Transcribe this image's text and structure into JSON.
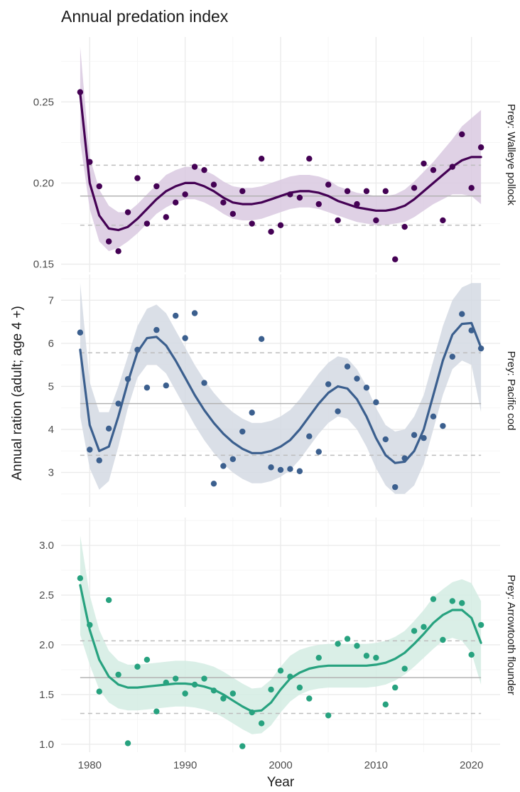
{
  "chart_data": {
    "type": "scatter",
    "title": "Annual predation index",
    "xlabel": "Year",
    "ylabel": "Annual ration (adult; age 4 +)",
    "grid": true,
    "x_ticks": [
      1980,
      1990,
      2000,
      2010,
      2020
    ],
    "xlim": [
      1977,
      2023
    ],
    "years": [
      1979,
      1980,
      1981,
      1982,
      1983,
      1984,
      1985,
      1986,
      1987,
      1988,
      1989,
      1990,
      1991,
      1992,
      1993,
      1994,
      1995,
      1996,
      1997,
      1998,
      1999,
      2000,
      2001,
      2002,
      2003,
      2004,
      2005,
      2006,
      2007,
      2008,
      2009,
      2010,
      2011,
      2012,
      2013,
      2014,
      2015,
      2016,
      2017,
      2018,
      2019,
      2020,
      2021
    ],
    "panels": [
      {
        "strip": "Prey: Walleye pollock",
        "color": "#440154",
        "ylim": [
          0.145,
          0.29
        ],
        "y_ticks": [
          0.15,
          0.2,
          0.25
        ],
        "y_tick_labels": [
          "0.15",
          "0.20",
          "0.25"
        ],
        "mean": 0.192,
        "lower": 0.174,
        "upper": 0.211,
        "points": [
          0.256,
          0.213,
          0.198,
          0.164,
          0.158,
          0.182,
          0.203,
          0.175,
          0.198,
          0.179,
          0.188,
          0.193,
          0.21,
          0.208,
          0.199,
          0.188,
          0.181,
          0.195,
          0.175,
          0.215,
          0.17,
          0.174,
          0.193,
          0.191,
          0.215,
          0.187,
          0.199,
          0.177,
          0.195,
          0.187,
          0.195,
          0.177,
          0.195,
          0.153,
          0.173,
          0.197,
          0.212,
          0.208,
          0.177,
          0.21,
          0.23,
          0.197,
          0.222
        ],
        "fit": [
          0.255,
          0.2,
          0.18,
          0.172,
          0.171,
          0.173,
          0.178,
          0.184,
          0.19,
          0.195,
          0.198,
          0.2,
          0.2,
          0.198,
          0.195,
          0.191,
          0.188,
          0.187,
          0.187,
          0.188,
          0.19,
          0.192,
          0.194,
          0.195,
          0.195,
          0.194,
          0.192,
          0.189,
          0.187,
          0.185,
          0.184,
          0.183,
          0.183,
          0.184,
          0.186,
          0.19,
          0.195,
          0.2,
          0.205,
          0.21,
          0.214,
          0.216,
          0.216
        ],
        "band_lo": [
          0.226,
          0.184,
          0.164,
          0.158,
          0.16,
          0.164,
          0.169,
          0.175,
          0.181,
          0.185,
          0.188,
          0.19,
          0.19,
          0.188,
          0.185,
          0.181,
          0.178,
          0.177,
          0.177,
          0.178,
          0.18,
          0.182,
          0.184,
          0.185,
          0.185,
          0.184,
          0.182,
          0.18,
          0.178,
          0.176,
          0.175,
          0.174,
          0.174,
          0.175,
          0.176,
          0.179,
          0.183,
          0.187,
          0.19,
          0.193,
          0.193,
          0.192,
          0.187
        ],
        "band_hi": [
          0.284,
          0.216,
          0.196,
          0.186,
          0.182,
          0.182,
          0.187,
          0.193,
          0.199,
          0.205,
          0.208,
          0.21,
          0.21,
          0.208,
          0.205,
          0.201,
          0.198,
          0.197,
          0.197,
          0.198,
          0.2,
          0.202,
          0.204,
          0.205,
          0.205,
          0.204,
          0.202,
          0.198,
          0.196,
          0.194,
          0.193,
          0.192,
          0.192,
          0.193,
          0.196,
          0.201,
          0.207,
          0.213,
          0.22,
          0.227,
          0.235,
          0.24,
          0.245
        ],
        "band_color": "#d9c9e0"
      },
      {
        "strip": "Prey: Pacific cod",
        "color": "#3b5f8e",
        "ylim": [
          2.2,
          7.6
        ],
        "y_ticks": [
          3,
          4,
          5,
          6,
          7
        ],
        "y_tick_labels": [
          "3",
          "4",
          "5",
          "6",
          "7"
        ],
        "mean": 4.6,
        "lower": 3.4,
        "upper": 5.78,
        "points": [
          6.25,
          3.53,
          3.28,
          4.02,
          4.6,
          5.17,
          5.85,
          4.97,
          6.31,
          5.02,
          6.64,
          6.12,
          6.7,
          5.08,
          2.74,
          3.15,
          3.31,
          3.95,
          4.39,
          6.1,
          3.12,
          3.06,
          3.08,
          3.03,
          3.84,
          3.48,
          5.05,
          4.42,
          5.46,
          5.18,
          4.97,
          4.63,
          3.77,
          2.66,
          3.33,
          3.87,
          3.8,
          4.3,
          4.08,
          5.69,
          6.68,
          6.3,
          5.88
        ],
        "fit": [
          5.85,
          4.1,
          3.5,
          3.6,
          4.3,
          5.1,
          5.8,
          6.12,
          6.15,
          5.95,
          5.6,
          5.2,
          4.8,
          4.45,
          4.15,
          3.9,
          3.7,
          3.55,
          3.45,
          3.45,
          3.5,
          3.6,
          3.75,
          4.0,
          4.3,
          4.6,
          4.85,
          5.0,
          4.95,
          4.7,
          4.3,
          3.8,
          3.4,
          3.22,
          3.25,
          3.5,
          4.0,
          4.8,
          5.6,
          6.2,
          6.45,
          6.47,
          5.9
        ],
        "band_lo": [
          4.3,
          3.1,
          2.6,
          2.8,
          3.6,
          4.5,
          5.2,
          5.5,
          5.5,
          5.3,
          4.9,
          4.5,
          4.1,
          3.75,
          3.45,
          3.2,
          3.0,
          2.85,
          2.75,
          2.75,
          2.8,
          2.9,
          3.05,
          3.3,
          3.6,
          3.9,
          4.15,
          4.3,
          4.25,
          4.0,
          3.6,
          3.1,
          2.7,
          2.5,
          2.5,
          2.7,
          3.2,
          4.0,
          4.8,
          5.4,
          5.6,
          5.5,
          4.4
        ],
        "band_hi": [
          7.4,
          5.1,
          4.4,
          4.4,
          5.0,
          5.7,
          6.4,
          6.8,
          6.9,
          6.7,
          6.3,
          5.9,
          5.5,
          5.15,
          4.85,
          4.6,
          4.4,
          4.25,
          4.15,
          4.15,
          4.2,
          4.3,
          4.45,
          4.7,
          5.0,
          5.3,
          5.55,
          5.7,
          5.65,
          5.4,
          5.0,
          4.5,
          4.1,
          3.95,
          4.0,
          4.3,
          4.8,
          5.6,
          6.4,
          7.0,
          7.3,
          7.4,
          7.4
        ],
        "band_color": "#d3d9e3"
      },
      {
        "strip": "Prey: Arrowtooth flounder",
        "color": "#27a27f",
        "ylim": [
          0.92,
          3.28
        ],
        "y_ticks": [
          1.0,
          1.5,
          2.0,
          2.5,
          3.0
        ],
        "y_tick_labels": [
          "1.0",
          "1.5",
          "2.0",
          "2.5",
          "3.0"
        ],
        "mean": 1.67,
        "lower": 1.31,
        "upper": 2.04,
        "points": [
          2.67,
          2.2,
          1.53,
          2.45,
          1.7,
          1.01,
          1.78,
          1.85,
          1.33,
          1.62,
          1.66,
          1.51,
          1.6,
          1.66,
          1.54,
          1.46,
          1.51,
          0.98,
          1.32,
          1.21,
          1.55,
          1.74,
          1.68,
          1.57,
          1.46,
          1.87,
          1.29,
          2.01,
          2.06,
          1.99,
          1.89,
          1.87,
          1.4,
          1.57,
          1.76,
          2.14,
          2.18,
          2.46,
          2.05,
          2.44,
          2.42,
          1.9,
          2.2
        ],
        "fit": [
          2.6,
          2.15,
          1.85,
          1.68,
          1.6,
          1.57,
          1.57,
          1.58,
          1.59,
          1.6,
          1.61,
          1.61,
          1.6,
          1.58,
          1.55,
          1.5,
          1.44,
          1.38,
          1.33,
          1.34,
          1.42,
          1.55,
          1.66,
          1.72,
          1.76,
          1.78,
          1.79,
          1.79,
          1.79,
          1.79,
          1.79,
          1.8,
          1.82,
          1.86,
          1.92,
          2.01,
          2.11,
          2.22,
          2.3,
          2.35,
          2.35,
          2.27,
          2.02
        ],
        "band_lo": [
          2.1,
          1.8,
          1.55,
          1.42,
          1.36,
          1.34,
          1.34,
          1.35,
          1.36,
          1.37,
          1.38,
          1.38,
          1.37,
          1.35,
          1.32,
          1.27,
          1.21,
          1.15,
          1.1,
          1.11,
          1.19,
          1.32,
          1.43,
          1.5,
          1.54,
          1.56,
          1.57,
          1.57,
          1.57,
          1.57,
          1.57,
          1.58,
          1.6,
          1.64,
          1.7,
          1.78,
          1.87,
          1.96,
          2.04,
          2.07,
          2.04,
          1.92,
          1.6
        ],
        "band_hi": [
          3.1,
          2.5,
          2.15,
          1.94,
          1.84,
          1.8,
          1.8,
          1.81,
          1.82,
          1.83,
          1.84,
          1.84,
          1.83,
          1.81,
          1.78,
          1.73,
          1.67,
          1.61,
          1.56,
          1.57,
          1.65,
          1.78,
          1.89,
          1.95,
          1.98,
          2.0,
          2.01,
          2.01,
          2.01,
          2.01,
          2.01,
          2.02,
          2.04,
          2.08,
          2.14,
          2.24,
          2.35,
          2.48,
          2.56,
          2.63,
          2.66,
          2.62,
          2.44
        ],
        "band_color": "#d4ece3"
      }
    ]
  }
}
